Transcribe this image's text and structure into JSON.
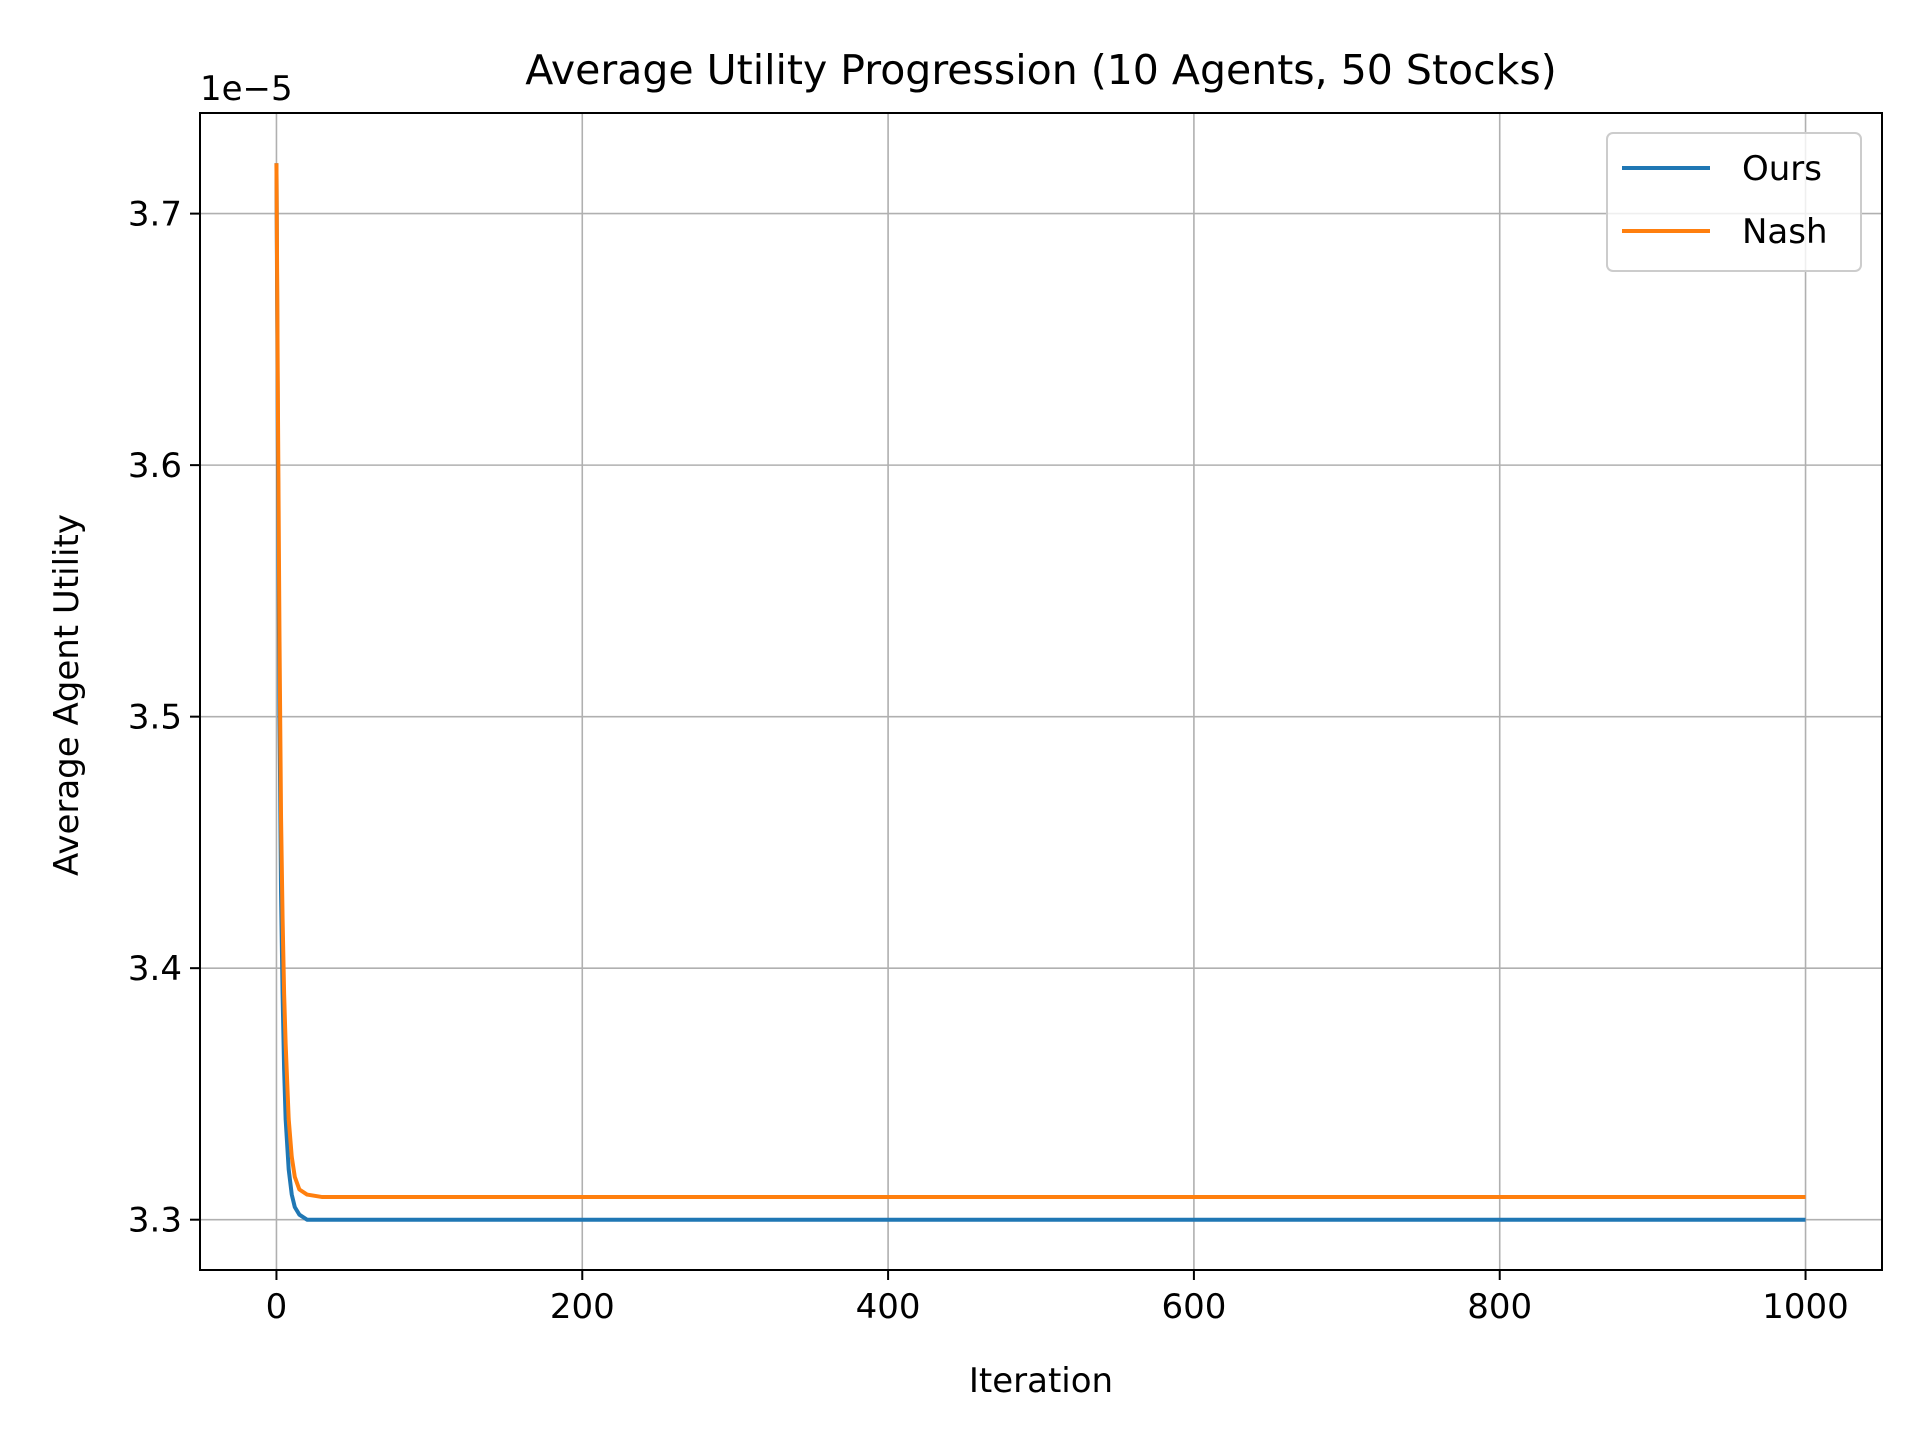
{
  "chart_data": {
    "type": "line",
    "title": "Average Utility Progression (10 Agents, 50 Stocks)",
    "xlabel": "Iteration",
    "ylabel": "Average Agent Utility",
    "y_offset_label": "1e−5",
    "xlim": [
      -50,
      1050
    ],
    "ylim": [
      3.28,
      3.74
    ],
    "x_ticks": [
      0,
      200,
      400,
      600,
      800,
      1000
    ],
    "x_tick_labels": [
      "0",
      "200",
      "400",
      "600",
      "800",
      "1000"
    ],
    "y_ticks": [
      3.3,
      3.4,
      3.5,
      3.6,
      3.7
    ],
    "y_tick_labels": [
      "3.3",
      "3.4",
      "3.5",
      "3.6",
      "3.7"
    ],
    "grid": true,
    "legend_position": "top-right",
    "series": [
      {
        "name": "Ours",
        "color": "#1f77b4",
        "x": [
          0,
          1,
          2,
          3,
          4,
          5,
          6,
          8,
          10,
          12,
          15,
          20,
          30,
          50,
          100,
          1000
        ],
        "y": [
          3.72,
          3.6,
          3.5,
          3.43,
          3.39,
          3.36,
          3.34,
          3.32,
          3.31,
          3.305,
          3.302,
          3.3,
          3.3,
          3.3,
          3.3,
          3.3
        ]
      },
      {
        "name": "Nash",
        "color": "#ff7f0e",
        "x": [
          0,
          1,
          2,
          3,
          4,
          5,
          6,
          8,
          10,
          12,
          15,
          20,
          30,
          50,
          100,
          1000
        ],
        "y": [
          3.72,
          3.62,
          3.53,
          3.46,
          3.42,
          3.39,
          3.37,
          3.34,
          3.325,
          3.317,
          3.312,
          3.31,
          3.309,
          3.309,
          3.309,
          3.309
        ]
      }
    ]
  }
}
